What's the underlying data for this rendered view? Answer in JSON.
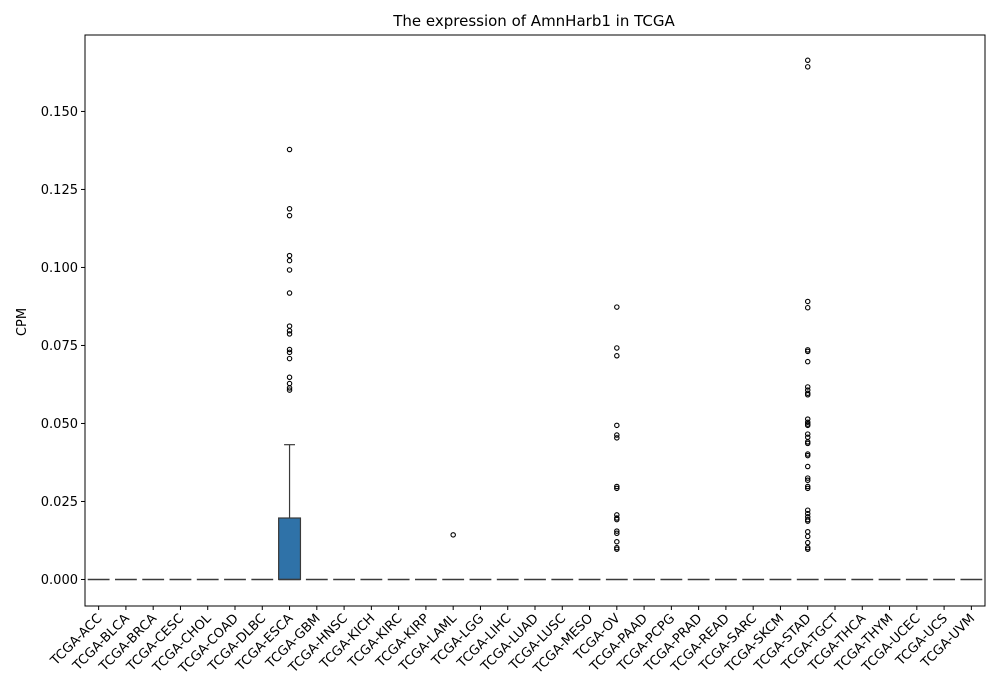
{
  "chart_data": {
    "type": "box",
    "title": "The expression of AmnHarb1 in TCGA",
    "xlabel": "",
    "ylabel": "CPM",
    "ylim": [
      -0.0085,
      0.1745
    ],
    "yticks": [
      0.0,
      0.025,
      0.05,
      0.075,
      0.1,
      0.125,
      0.15
    ],
    "ytick_labels": [
      "0.000",
      "0.025",
      "0.050",
      "0.075",
      "0.100",
      "0.125",
      "0.150"
    ],
    "grid": false,
    "box_color": "#2f72a8",
    "categories": [
      "TCGA-ACC",
      "TCGA-BLCA",
      "TCGA-BRCA",
      "TCGA-CESC",
      "TCGA-CHOL",
      "TCGA-COAD",
      "TCGA-DLBC",
      "TCGA-ESCA",
      "TCGA-GBM",
      "TCGA-HNSC",
      "TCGA-KICH",
      "TCGA-KIRC",
      "TCGA-KIRP",
      "TCGA-LAML",
      "TCGA-LGG",
      "TCGA-LIHC",
      "TCGA-LUAD",
      "TCGA-LUSC",
      "TCGA-MESO",
      "TCGA-OV",
      "TCGA-PAAD",
      "TCGA-PCPG",
      "TCGA-PRAD",
      "TCGA-READ",
      "TCGA-SARC",
      "TCGA-SKCM",
      "TCGA-STAD",
      "TCGA-TGCT",
      "TCGA-THCA",
      "TCGA-THYM",
      "TCGA-UCEC",
      "TCGA-UCS",
      "TCGA-UVM"
    ],
    "boxes": [
      {
        "q1": 0,
        "median": 0,
        "q3": 0,
        "whisker_low": 0,
        "whisker_high": 0,
        "outliers": []
      },
      {
        "q1": 0,
        "median": 0,
        "q3": 0,
        "whisker_low": 0,
        "whisker_high": 0,
        "outliers": []
      },
      {
        "q1": 0,
        "median": 0,
        "q3": 0,
        "whisker_low": 0,
        "whisker_high": 0,
        "outliers": []
      },
      {
        "q1": 0,
        "median": 0,
        "q3": 0,
        "whisker_low": 0,
        "whisker_high": 0,
        "outliers": []
      },
      {
        "q1": 0,
        "median": 0,
        "q3": 0,
        "whisker_low": 0,
        "whisker_high": 0,
        "outliers": []
      },
      {
        "q1": 0,
        "median": 0,
        "q3": 0,
        "whisker_low": 0,
        "whisker_high": 0,
        "outliers": []
      },
      {
        "q1": 0,
        "median": 0,
        "q3": 0,
        "whisker_low": 0,
        "whisker_high": 0,
        "outliers": []
      },
      {
        "q1": 0,
        "median": 0,
        "q3": 0.0197,
        "whisker_low": 0,
        "whisker_high": 0.0432,
        "outliers": [
          0.1378,
          0.1188,
          0.1166,
          0.1038,
          0.1022,
          0.0992,
          0.0918,
          0.0812,
          0.0797,
          0.0787,
          0.0737,
          0.0728,
          0.0708,
          0.0648,
          0.0628,
          0.0614,
          0.0607
        ]
      },
      {
        "q1": 0,
        "median": 0,
        "q3": 0,
        "whisker_low": 0,
        "whisker_high": 0,
        "outliers": []
      },
      {
        "q1": 0,
        "median": 0,
        "q3": 0,
        "whisker_low": 0,
        "whisker_high": 0,
        "outliers": []
      },
      {
        "q1": 0,
        "median": 0,
        "q3": 0,
        "whisker_low": 0,
        "whisker_high": 0,
        "outliers": []
      },
      {
        "q1": 0,
        "median": 0,
        "q3": 0,
        "whisker_low": 0,
        "whisker_high": 0,
        "outliers": []
      },
      {
        "q1": 0,
        "median": 0,
        "q3": 0,
        "whisker_low": 0,
        "whisker_high": 0,
        "outliers": []
      },
      {
        "q1": 0,
        "median": 0,
        "q3": 0,
        "whisker_low": 0,
        "whisker_high": 0,
        "outliers": [
          0.0143
        ]
      },
      {
        "q1": 0,
        "median": 0,
        "q3": 0,
        "whisker_low": 0,
        "whisker_high": 0,
        "outliers": []
      },
      {
        "q1": 0,
        "median": 0,
        "q3": 0,
        "whisker_low": 0,
        "whisker_high": 0,
        "outliers": []
      },
      {
        "q1": 0,
        "median": 0,
        "q3": 0,
        "whisker_low": 0,
        "whisker_high": 0,
        "outliers": []
      },
      {
        "q1": 0,
        "median": 0,
        "q3": 0,
        "whisker_low": 0,
        "whisker_high": 0,
        "outliers": []
      },
      {
        "q1": 0,
        "median": 0,
        "q3": 0,
        "whisker_low": 0,
        "whisker_high": 0,
        "outliers": []
      },
      {
        "q1": 0,
        "median": 0,
        "q3": 0,
        "whisker_low": 0,
        "whisker_high": 0,
        "outliers": [
          0.0873,
          0.0742,
          0.0717,
          0.0494,
          0.0463,
          0.0454,
          0.0298,
          0.0292,
          0.0207,
          0.0197,
          0.0192,
          0.0155,
          0.0148,
          0.0121,
          0.0102,
          0.0097
        ]
      },
      {
        "q1": 0,
        "median": 0,
        "q3": 0,
        "whisker_low": 0,
        "whisker_high": 0,
        "outliers": []
      },
      {
        "q1": 0,
        "median": 0,
        "q3": 0,
        "whisker_low": 0,
        "whisker_high": 0,
        "outliers": []
      },
      {
        "q1": 0,
        "median": 0,
        "q3": 0,
        "whisker_low": 0,
        "whisker_high": 0,
        "outliers": []
      },
      {
        "q1": 0,
        "median": 0,
        "q3": 0,
        "whisker_low": 0,
        "whisker_high": 0,
        "outliers": []
      },
      {
        "q1": 0,
        "median": 0,
        "q3": 0,
        "whisker_low": 0,
        "whisker_high": 0,
        "outliers": []
      },
      {
        "q1": 0,
        "median": 0,
        "q3": 0,
        "whisker_low": 0,
        "whisker_high": 0,
        "outliers": []
      },
      {
        "q1": 0,
        "median": 0,
        "q3": 0,
        "whisker_low": 0,
        "whisker_high": 0,
        "outliers": [
          0.1664,
          0.1643,
          0.0891,
          0.0871,
          0.0736,
          0.0731,
          0.0698,
          0.0617,
          0.0607,
          0.0597,
          0.0592,
          0.0514,
          0.0504,
          0.0498,
          0.0494,
          0.0466,
          0.0456,
          0.0441,
          0.0436,
          0.0402,
          0.0397,
          0.0362,
          0.0325,
          0.0318,
          0.0298,
          0.0292,
          0.0222,
          0.0211,
          0.0201,
          0.0192,
          0.0187,
          0.0153,
          0.0138,
          0.0118,
          0.0102,
          0.0097
        ]
      },
      {
        "q1": 0,
        "median": 0,
        "q3": 0,
        "whisker_low": 0,
        "whisker_high": 0,
        "outliers": []
      },
      {
        "q1": 0,
        "median": 0,
        "q3": 0,
        "whisker_low": 0,
        "whisker_high": 0,
        "outliers": []
      },
      {
        "q1": 0,
        "median": 0,
        "q3": 0,
        "whisker_low": 0,
        "whisker_high": 0,
        "outliers": []
      },
      {
        "q1": 0,
        "median": 0,
        "q3": 0,
        "whisker_low": 0,
        "whisker_high": 0,
        "outliers": []
      },
      {
        "q1": 0,
        "median": 0,
        "q3": 0,
        "whisker_low": 0,
        "whisker_high": 0,
        "outliers": []
      },
      {
        "q1": 0,
        "median": 0,
        "q3": 0,
        "whisker_low": 0,
        "whisker_high": 0,
        "outliers": []
      }
    ]
  }
}
